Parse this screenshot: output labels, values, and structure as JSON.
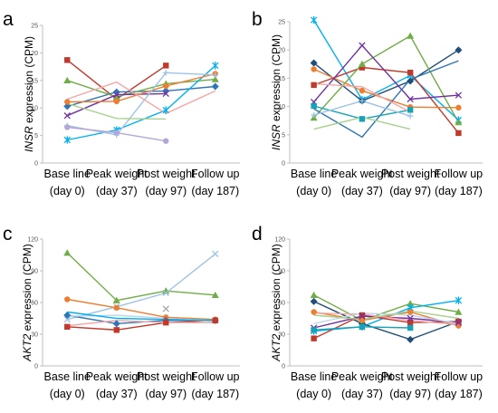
{
  "chart_data": [
    {
      "panel": "a",
      "type": "line",
      "ylabel_italic": "INSR",
      "ylabel_rest": " expression (CPM)",
      "ylim": [
        0,
        25
      ],
      "yticks": [
        0,
        5,
        10,
        15,
        20,
        25
      ],
      "categories": [
        [
          "Base line",
          "(day 0)"
        ],
        [
          "Peak weight",
          "(day 37)"
        ],
        [
          "Post weight",
          "(day 97)"
        ],
        [
          "Follow up",
          "(day 187)"
        ]
      ],
      "series": [
        {
          "color": "#c0392b",
          "marker": "square",
          "values": [
            18.7,
            11.6,
            17.7,
            null
          ]
        },
        {
          "color": "#2e75b6",
          "marker": "diamond",
          "values": [
            10.3,
            12.9,
            13.1,
            13.9
          ]
        },
        {
          "color": "#70ad47",
          "marker": "triangle",
          "values": [
            15.0,
            12.0,
            14.4,
            15.2
          ]
        },
        {
          "color": "#7030a0",
          "marker": "x",
          "values": [
            8.6,
            12.4,
            12.6,
            null
          ]
        },
        {
          "color": "#00b0f0",
          "marker": "star",
          "values": [
            4.2,
            6.0,
            9.6,
            17.7
          ]
        },
        {
          "color": "#ed7d31",
          "marker": "circle",
          "values": [
            11.1,
            11.2,
            14.0,
            16.2
          ]
        },
        {
          "color": "#9dc3e6",
          "marker": "plus",
          "values": [
            6.8,
            5.1,
            16.4,
            16.0
          ]
        },
        {
          "color": "#f4a6a6",
          "marker": "none",
          "values": [
            11.6,
            14.7,
            9.0,
            13.1
          ]
        },
        {
          "color": "#a9d18e",
          "marker": "none",
          "values": [
            10.8,
            8.1,
            8.0,
            null
          ]
        },
        {
          "color": "#b4a7d6",
          "marker": "circle",
          "values": [
            6.5,
            5.5,
            4.0,
            null
          ]
        }
      ]
    },
    {
      "panel": "b",
      "type": "line",
      "ylabel_italic": "INSR",
      "ylabel_rest": " expression (CPM)",
      "ylim": [
        0,
        25
      ],
      "yticks": [
        0,
        5,
        10,
        15,
        20,
        25
      ],
      "categories": [
        [
          "Base line",
          "(day 0)"
        ],
        [
          "Peak weight",
          "(day 37)"
        ],
        [
          "Post weight",
          "(day 97)"
        ],
        [
          "Follow up",
          "(day 187)"
        ]
      ],
      "series": [
        {
          "color": "#00b0f0",
          "marker": "star",
          "values": [
            25.3,
            11.2,
            15.5,
            7.6
          ]
        },
        {
          "color": "#1f4e79",
          "marker": "diamond",
          "values": [
            17.7,
            11.0,
            14.5,
            20.0
          ]
        },
        {
          "color": "#c0392b",
          "marker": "square",
          "values": [
            13.8,
            16.9,
            16.0,
            5.3
          ]
        },
        {
          "color": "#ed7d31",
          "marker": "circle",
          "values": [
            16.6,
            12.8,
            9.9,
            9.8
          ]
        },
        {
          "color": "#70ad47",
          "marker": "triangle",
          "values": [
            8.0,
            17.5,
            22.5,
            7.2
          ]
        },
        {
          "color": "#7030a0",
          "marker": "x",
          "values": [
            10.8,
            20.8,
            11.3,
            12.0
          ]
        },
        {
          "color": "#2e75b6",
          "marker": "none",
          "values": [
            9.6,
            4.6,
            14.8,
            18.1
          ]
        },
        {
          "color": "#17a2b8",
          "marker": "square",
          "values": [
            10.1,
            7.8,
            9.4,
            null
          ]
        },
        {
          "color": "#f4a6a6",
          "marker": "none",
          "values": [
            14.0,
            13.5,
            9.0,
            null
          ]
        },
        {
          "color": "#a9d18e",
          "marker": "none",
          "values": [
            6.0,
            8.1,
            6.0,
            null
          ]
        },
        {
          "color": "#9dc3e6",
          "marker": "plus",
          "values": [
            8.5,
            11.0,
            8.3,
            null
          ]
        }
      ]
    },
    {
      "panel": "c",
      "type": "line",
      "ylabel_italic": "AKT2",
      "ylabel_rest": " expression (CPM)",
      "ylim": [
        0,
        120
      ],
      "yticks": [
        0,
        30,
        60,
        90,
        120
      ],
      "categories": [
        [
          "Base line",
          "(day 0)"
        ],
        [
          "Peak weight",
          "(day 37)"
        ],
        [
          "Post weight",
          "(day 97)"
        ],
        [
          "Follow up",
          "(day 187)"
        ]
      ],
      "series": [
        {
          "color": "#70ad47",
          "marker": "triangle",
          "values": [
            107,
            62,
            71,
            67
          ]
        },
        {
          "color": "#9dc3e6",
          "marker": "x",
          "values": [
            44,
            56,
            69,
            106
          ]
        },
        {
          "color": "#ed7d31",
          "marker": "circle",
          "values": [
            63,
            55,
            46,
            44
          ]
        },
        {
          "color": "#2e75b6",
          "marker": "diamond",
          "values": [
            48,
            40,
            43,
            43
          ]
        },
        {
          "color": "#c0392b",
          "marker": "square",
          "values": [
            37,
            34,
            41,
            43
          ]
        },
        {
          "color": "#bdd7ee",
          "marker": "none",
          "values": [
            47,
            48,
            45,
            42
          ]
        },
        {
          "color": "#f4a6a6",
          "marker": "none",
          "values": [
            38,
            43,
            41,
            41
          ]
        },
        {
          "color": "#00b0f0",
          "marker": "none",
          "values": [
            51,
            45,
            44,
            43
          ]
        }
      ],
      "extra_markers": [
        {
          "category_index": 2,
          "value": 54,
          "color": "#a6a6a6",
          "marker": "x"
        }
      ]
    },
    {
      "panel": "d",
      "type": "line",
      "ylabel_italic": "AKT2",
      "ylabel_rest": " expression (CPM)",
      "ylim": [
        0,
        120
      ],
      "yticks": [
        0,
        30,
        60,
        90,
        120
      ],
      "categories": [
        [
          "Base line",
          "(day 0)"
        ],
        [
          "Peak weight",
          "(day 37)"
        ],
        [
          "Post weight",
          "(day 97)"
        ],
        [
          "Follow up",
          "(day 187)"
        ]
      ],
      "series": [
        {
          "color": "#70ad47",
          "marker": "triangle",
          "values": [
            67,
            43,
            59,
            51
          ]
        },
        {
          "color": "#00b0f0",
          "marker": "star",
          "values": [
            33,
            37,
            55,
            62
          ]
        },
        {
          "color": "#1f4e79",
          "marker": "diamond",
          "values": [
            61,
            40,
            25,
            42
          ]
        },
        {
          "color": "#c0392b",
          "marker": "square",
          "values": [
            26,
            48,
            41,
            42
          ]
        },
        {
          "color": "#ed7d31",
          "marker": "circle",
          "values": [
            51,
            43,
            51,
            38
          ]
        },
        {
          "color": "#7030a0",
          "marker": "x",
          "values": [
            36,
            47,
            45,
            41
          ]
        },
        {
          "color": "#17a2b8",
          "marker": "square",
          "values": [
            34,
            37,
            36,
            null
          ]
        },
        {
          "color": "#f4a6a6",
          "marker": "none",
          "values": [
            50,
            49,
            43,
            39
          ]
        },
        {
          "color": "#bdd7ee",
          "marker": "none",
          "values": [
            40,
            50,
            48,
            40
          ]
        },
        {
          "color": "#a9d18e",
          "marker": "none",
          "values": [
            48,
            44,
            52,
            45
          ]
        }
      ]
    }
  ]
}
